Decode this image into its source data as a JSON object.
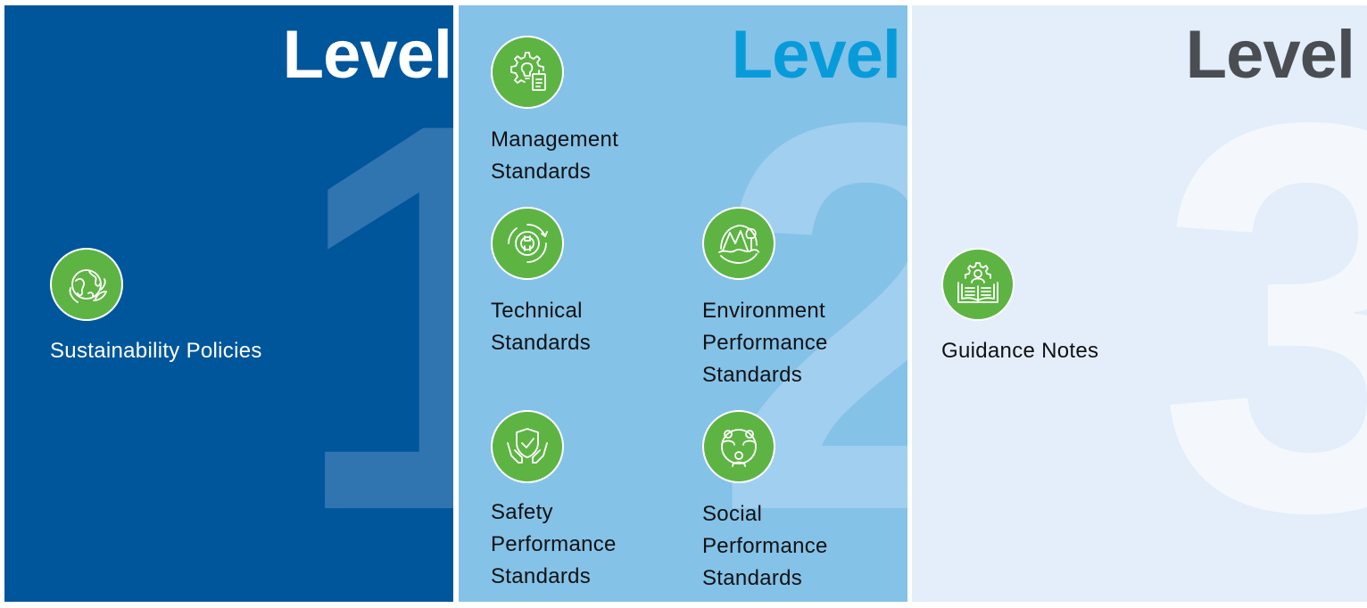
{
  "levels": [
    {
      "title": "Level",
      "number": "1",
      "items": [
        {
          "label": "Sustainability Policies",
          "icon": "globe-leaf-icon"
        }
      ]
    },
    {
      "title": "Level",
      "number": "2",
      "items": [
        {
          "label_lines": [
            "Management",
            "Standards"
          ],
          "icon": "gear-bulb-tag-icon"
        },
        {
          "label_lines": [
            "Technical",
            "Standards"
          ],
          "icon": "gear-wrench-icon"
        },
        {
          "label_lines": [
            "Environment",
            "Performance",
            "Standards"
          ],
          "icon": "mountain-tree-icon"
        },
        {
          "label_lines": [
            "Safety",
            "Performance",
            "Standards"
          ],
          "icon": "shield-hands-icon"
        },
        {
          "label_lines": [
            "Social",
            "Performance",
            "Standards"
          ],
          "icon": "people-network-icon"
        }
      ]
    },
    {
      "title": "Level",
      "number": "3",
      "items": [
        {
          "label": "Guidance Notes",
          "icon": "book-person-gear-icon"
        }
      ]
    }
  ],
  "colors": {
    "level1_bg": "#00569b",
    "level2_bg": "#84c2e8",
    "level3_bg": "#e3eefa",
    "icon_green": "#5db443",
    "level2_title": "#089bd9",
    "level3_title": "#4a4e53"
  }
}
